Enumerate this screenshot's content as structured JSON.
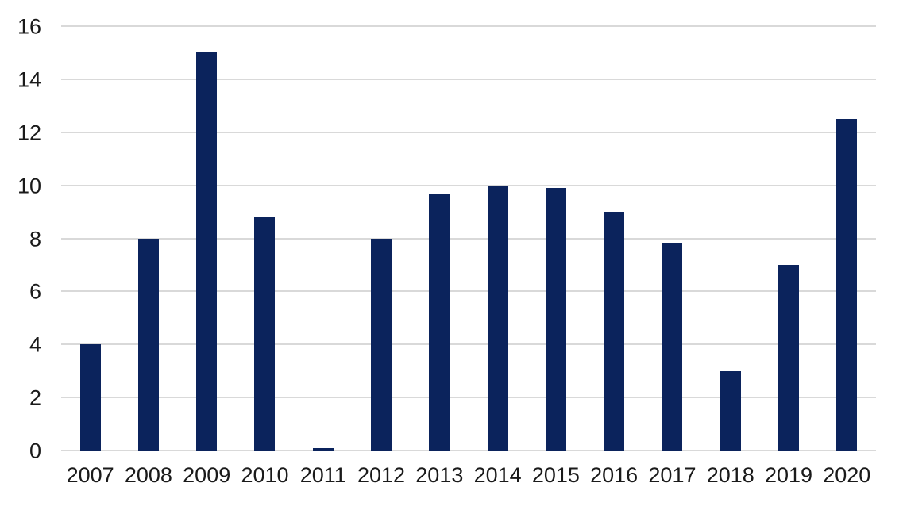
{
  "chart_data": {
    "type": "bar",
    "title": "",
    "xlabel": "",
    "ylabel": "",
    "categories": [
      "2007",
      "2008",
      "2009",
      "2010",
      "2011",
      "2012",
      "2013",
      "2014",
      "2015",
      "2016",
      "2017",
      "2018",
      "2019",
      "2020"
    ],
    "values": [
      4.0,
      8.0,
      15.0,
      8.8,
      0.1,
      8.0,
      9.7,
      10.0,
      9.9,
      9.0,
      7.8,
      3.0,
      7.0,
      12.5
    ],
    "ylim": [
      0,
      16
    ],
    "yticks": [
      0,
      2,
      4,
      6,
      8,
      10,
      12,
      14,
      16
    ],
    "grid": "horizontal",
    "legend": "none",
    "colors": {
      "bar": "#0b235c",
      "gridline": "#d9d9d9",
      "axis_label": "#1a1a1a",
      "background": "#ffffff"
    }
  }
}
